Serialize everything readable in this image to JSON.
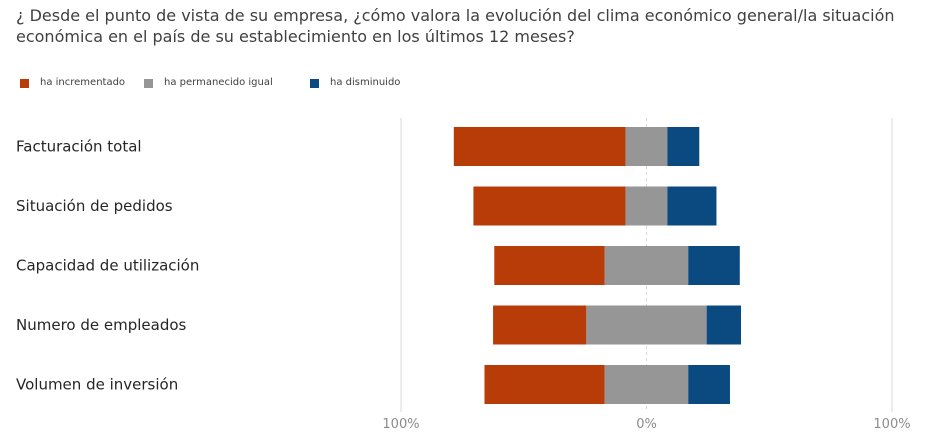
{
  "question": "¿ Desde el punto de vista de su empresa, ¿cómo valora la evolución del clima económico general/la situación económica en el país de su establecimiento en los últimos 12 meses?",
  "legend": [
    {
      "label": "ha incrementado",
      "color": "#B83C08"
    },
    {
      "label": "ha permanecido igual",
      "color": "#969696"
    },
    {
      "label": "ha disminuido",
      "color": "#0A4A80"
    }
  ],
  "chart_data": {
    "type": "bar",
    "orientation": "horizontal",
    "stacked": "diverging",
    "categories": [
      "Facturación total",
      "Situación de pedidos",
      "Capacidad de utilización",
      "Numero de empleados",
      "Volumen de inversión"
    ],
    "series": [
      {
        "name": "ha incrementado",
        "color": "#B83C08",
        "values": [
          70,
          62,
          45,
          38,
          49
        ]
      },
      {
        "name": "ha permanecido igual",
        "color": "#969696",
        "values": [
          17,
          17,
          34,
          49,
          34
        ]
      },
      {
        "name": "ha disminuido",
        "color": "#0A4A80",
        "values": [
          13,
          20,
          21,
          14,
          17
        ]
      }
    ],
    "center_offset": [
      -8.5,
      -8.5,
      -17,
      -24.5,
      -17
    ],
    "xlim": [
      -100,
      100
    ],
    "x_tick_labels": [
      "100%",
      "0%",
      "100%"
    ],
    "grid": true,
    "legend_position": "top-left"
  }
}
